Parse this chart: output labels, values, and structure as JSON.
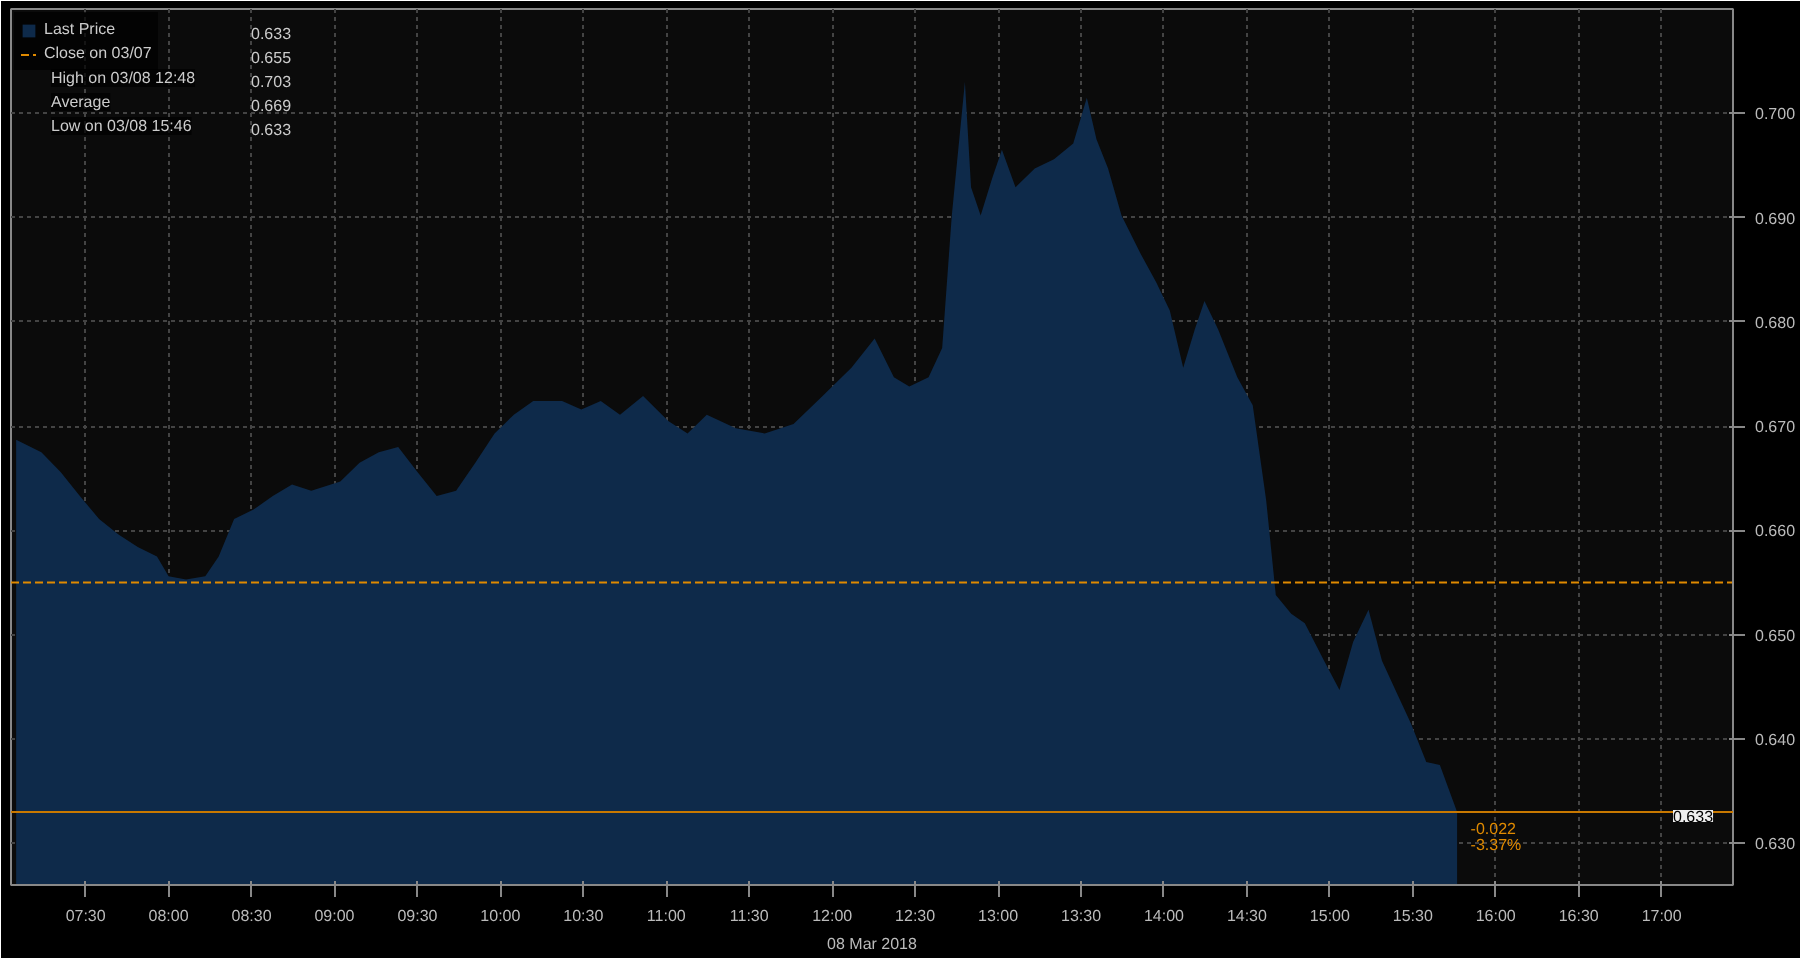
{
  "chart_data": {
    "type": "area",
    "xlabel": "08 Mar 2018",
    "x": [
      7.081,
      7.233,
      7.349,
      7.465,
      7.581,
      7.698,
      7.814,
      7.93,
      8.0,
      8.105,
      8.221,
      8.302,
      8.395,
      8.512,
      8.628,
      8.744,
      8.86,
      9.035,
      9.151,
      9.267,
      9.384,
      9.5,
      9.616,
      9.733,
      9.849,
      9.965,
      10.081,
      10.198,
      10.372,
      10.488,
      10.605,
      10.721,
      10.86,
      11.012,
      11.128,
      11.244,
      11.419,
      11.593,
      11.767,
      11.942,
      12.116,
      12.256,
      12.372,
      12.465,
      12.581,
      12.663,
      12.721,
      12.8,
      12.837,
      12.895,
      12.965,
      13.023,
      13.105,
      13.221,
      13.337,
      13.453,
      13.535,
      13.593,
      13.663,
      13.744,
      13.86,
      13.953,
      14.035,
      14.116,
      14.186,
      14.244,
      14.326,
      14.442,
      14.535,
      14.616,
      14.674,
      14.767,
      14.849,
      14.965,
      15.058,
      15.14,
      15.233,
      15.314,
      15.395,
      15.488,
      15.581,
      15.663,
      15.767
    ],
    "series": [
      {
        "name": "Last Price",
        "color": "#0e2a4a",
        "values": [
          0.6687,
          0.6675,
          0.6656,
          0.6633,
          0.6611,
          0.6596,
          0.6584,
          0.6575,
          0.6556,
          0.6553,
          0.6556,
          0.6575,
          0.6611,
          0.662,
          0.6633,
          0.6644,
          0.6638,
          0.6647,
          0.6665,
          0.6675,
          0.668,
          0.6656,
          0.6633,
          0.6638,
          0.6665,
          0.6693,
          0.6711,
          0.6724,
          0.6724,
          0.6716,
          0.6724,
          0.6711,
          0.6729,
          0.6705,
          0.6693,
          0.6711,
          0.6698,
          0.6693,
          0.6702,
          0.6729,
          0.6756,
          0.6784,
          0.6747,
          0.6738,
          0.6747,
          0.6775,
          0.6902,
          0.703,
          0.6929,
          0.6902,
          0.6938,
          0.6965,
          0.6929,
          0.6947,
          0.6956,
          0.6971,
          0.7015,
          0.6975,
          0.6947,
          0.6902,
          0.6865,
          0.6838,
          0.6811,
          0.6756,
          0.6793,
          0.682,
          0.6793,
          0.6747,
          0.672,
          0.6629,
          0.6538,
          0.652,
          0.6511,
          0.6475,
          0.6447,
          0.6493,
          0.6524,
          0.6475,
          0.6447,
          0.6415,
          0.6378,
          0.6375,
          0.633
        ]
      }
    ],
    "xlim": [
      7.05,
      17.43
    ],
    "ylim": [
      0.626,
      0.71
    ],
    "xticks": [
      {
        "value": 7.5,
        "label": "07:30"
      },
      {
        "value": 8,
        "label": "08:00"
      },
      {
        "value": 8.5,
        "label": "08:30"
      },
      {
        "value": 9,
        "label": "09:00"
      },
      {
        "value": 9.5,
        "label": "09:30"
      },
      {
        "value": 10,
        "label": "10:00"
      },
      {
        "value": 10.5,
        "label": "10:30"
      },
      {
        "value": 11,
        "label": "11:00"
      },
      {
        "value": 11.5,
        "label": "11:30"
      },
      {
        "value": 12,
        "label": "12:00"
      },
      {
        "value": 12.5,
        "label": "12:30"
      },
      {
        "value": 13,
        "label": "13:00"
      },
      {
        "value": 13.5,
        "label": "13:30"
      },
      {
        "value": 14,
        "label": "14:00"
      },
      {
        "value": 14.5,
        "label": "14:30"
      },
      {
        "value": 15,
        "label": "15:00"
      },
      {
        "value": 15.5,
        "label": "15:30"
      },
      {
        "value": 16,
        "label": "16:00"
      },
      {
        "value": 16.5,
        "label": "16:30"
      },
      {
        "value": 17,
        "label": "17:00"
      }
    ],
    "yticks": [
      {
        "value": 0.63,
        "label": "0.630"
      },
      {
        "value": 0.64,
        "label": "0.640"
      },
      {
        "value": 0.65,
        "label": "0.650"
      },
      {
        "value": 0.66,
        "label": "0.660"
      },
      {
        "value": 0.67,
        "label": "0.670"
      },
      {
        "value": 0.68,
        "label": "0.680"
      },
      {
        "value": 0.69,
        "label": "0.690"
      },
      {
        "value": 0.7,
        "label": "0.700"
      }
    ],
    "ref_lines": [
      {
        "axis": "y",
        "value": 0.655,
        "label": "Close on 03/07",
        "color": "#e08a00",
        "line_style": "dashed"
      },
      {
        "axis": "y",
        "value": 0.633,
        "label": "0.633",
        "color": "#c87800",
        "line_style": "solid"
      }
    ],
    "annotations": [
      "0.633",
      "0.655",
      "High on 03/08 12:48 0.703",
      "Average 0.669",
      "Low on 03/08 15:46 0.633",
      {
        "text": "-0.022 -3.37%",
        "x": 15.8,
        "y": 0.633
      }
    ],
    "grid": true,
    "legend": "top left"
  }
}
